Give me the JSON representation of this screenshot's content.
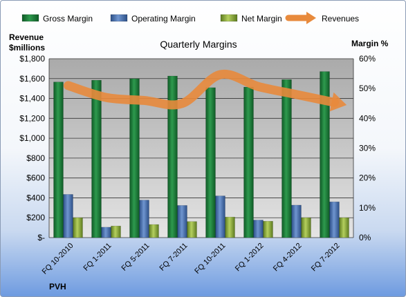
{
  "chart_data": {
    "type": "bar",
    "title": "Quarterly Margins",
    "left_axis_label": [
      "Revenue",
      "$millions"
    ],
    "right_axis_label": "Margin %",
    "footer": "PVH",
    "categories": [
      "FQ 10-2010",
      "FQ 1-2011",
      "FQ 5-2011",
      "FQ 7-2011",
      "FQ 10-2011",
      "FQ 1-2012",
      "FQ 4-2012",
      "FQ 7-2012"
    ],
    "y_left": {
      "min": 0,
      "max": 1800,
      "ticks": [
        "$-",
        "$200",
        "$400",
        "$600",
        "$800",
        "$1,000",
        "$1,200",
        "$1,400",
        "$1,600",
        "$1,800"
      ]
    },
    "y_right": {
      "min": 0,
      "max": 60,
      "ticks": [
        "0%",
        "10%",
        "20%",
        "30%",
        "40%",
        "50%",
        "60%"
      ]
    },
    "series": [
      {
        "name": "Gross Margin",
        "axis": "right",
        "kind": "bar",
        "color": "#1f7a3a",
        "values": [
          52.2,
          52.8,
          53.3,
          54.2,
          50.3,
          50.5,
          53.0,
          55.7
        ]
      },
      {
        "name": "Operating Margin",
        "axis": "right",
        "kind": "bar",
        "color": "#4a72b0",
        "values": [
          14.5,
          3.5,
          12.6,
          10.8,
          14.0,
          5.9,
          10.9,
          12.0
        ]
      },
      {
        "name": "Net Margin",
        "axis": "right",
        "kind": "bar",
        "color": "#8bab3c",
        "values": [
          6.7,
          3.9,
          4.4,
          5.4,
          6.9,
          5.5,
          6.7,
          6.7
        ]
      },
      {
        "name": "Revenues",
        "axis": "left",
        "kind": "line",
        "color": "#e88a3c",
        "values": [
          1530,
          1410,
          1380,
          1350,
          1640,
          1520,
          1440,
          1360
        ]
      }
    ],
    "legend_position": "top",
    "grid": true
  }
}
